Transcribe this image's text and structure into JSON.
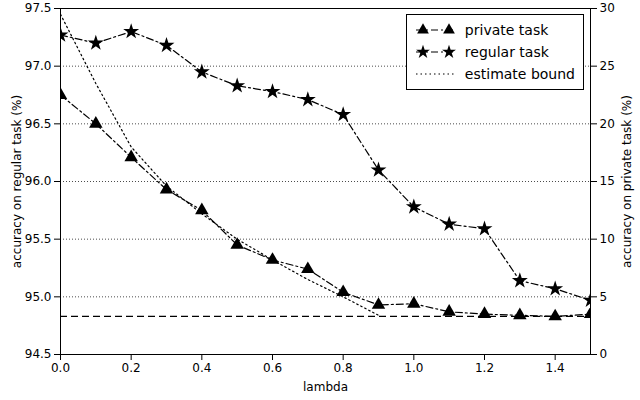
{
  "chart_data": {
    "type": "line",
    "x_label": "lambda",
    "y_label": "accuracy on regular task (%)",
    "y2_label": "accuracy on private task (%)",
    "x": [
      0.0,
      0.1,
      0.2,
      0.3,
      0.4,
      0.5,
      0.6,
      0.7,
      0.8,
      0.9,
      1.0,
      1.1,
      1.2,
      1.3,
      1.4,
      1.5
    ],
    "xlim": [
      0,
      1.5
    ],
    "xticks": [
      {
        "value": 0,
        "label": "0.0"
      },
      {
        "value": 0.2,
        "label": "0.2"
      },
      {
        "value": 0.4,
        "label": "0.4"
      },
      {
        "value": 0.6,
        "label": "0.6"
      },
      {
        "value": 0.8,
        "label": "0.8"
      },
      {
        "value": 1,
        "label": "1.0"
      },
      {
        "value": 1.2,
        "label": "1.2"
      },
      {
        "value": 1.4,
        "label": "1.4"
      }
    ],
    "ylim": [
      94.5,
      97.5
    ],
    "yticks": [
      94.5,
      {
        "value": 95,
        "label": "95.0"
      },
      95.5,
      {
        "value": 96,
        "label": "96.0"
      },
      96.5,
      {
        "value": 97,
        "label": "97.0"
      },
      97.5
    ],
    "y2lim": [
      0,
      30
    ],
    "y2ticks": [
      0,
      5,
      10,
      15,
      20,
      25,
      30
    ],
    "grid": true,
    "legend": "upper right",
    "series": [
      {
        "name": "private task",
        "axis": "y2",
        "color": "#000000",
        "marker": "triangle",
        "line_style": "dashdot",
        "values": [
          22.5,
          20.0,
          17.1,
          14.3,
          12.5,
          9.5,
          8.2,
          7.4,
          5.4,
          4.3,
          4.4,
          3.7,
          3.5,
          3.4,
          3.3,
          3.5
        ]
      },
      {
        "name": "regular task",
        "axis": "y",
        "color": "#000000",
        "marker": "star",
        "line_style": "dashdot",
        "values": [
          97.27,
          97.2,
          97.3,
          97.18,
          96.95,
          96.83,
          96.78,
          96.71,
          96.58,
          96.1,
          95.78,
          95.63,
          95.59,
          95.14,
          95.07,
          94.97
        ]
      },
      {
        "name": "estimate bound",
        "axis": "y2",
        "color": "#000000",
        "line_style": "dotted",
        "values": [
          29.5,
          23.5,
          18.0,
          14.6,
          12.2,
          10.0,
          8.2,
          6.5,
          5.0,
          3.4,
          null,
          null,
          null,
          null,
          null,
          null
        ]
      }
    ],
    "hlines": [
      {
        "value": 3.3,
        "axis": "y2",
        "color": "#000000",
        "line_style": "dashed"
      }
    ]
  }
}
